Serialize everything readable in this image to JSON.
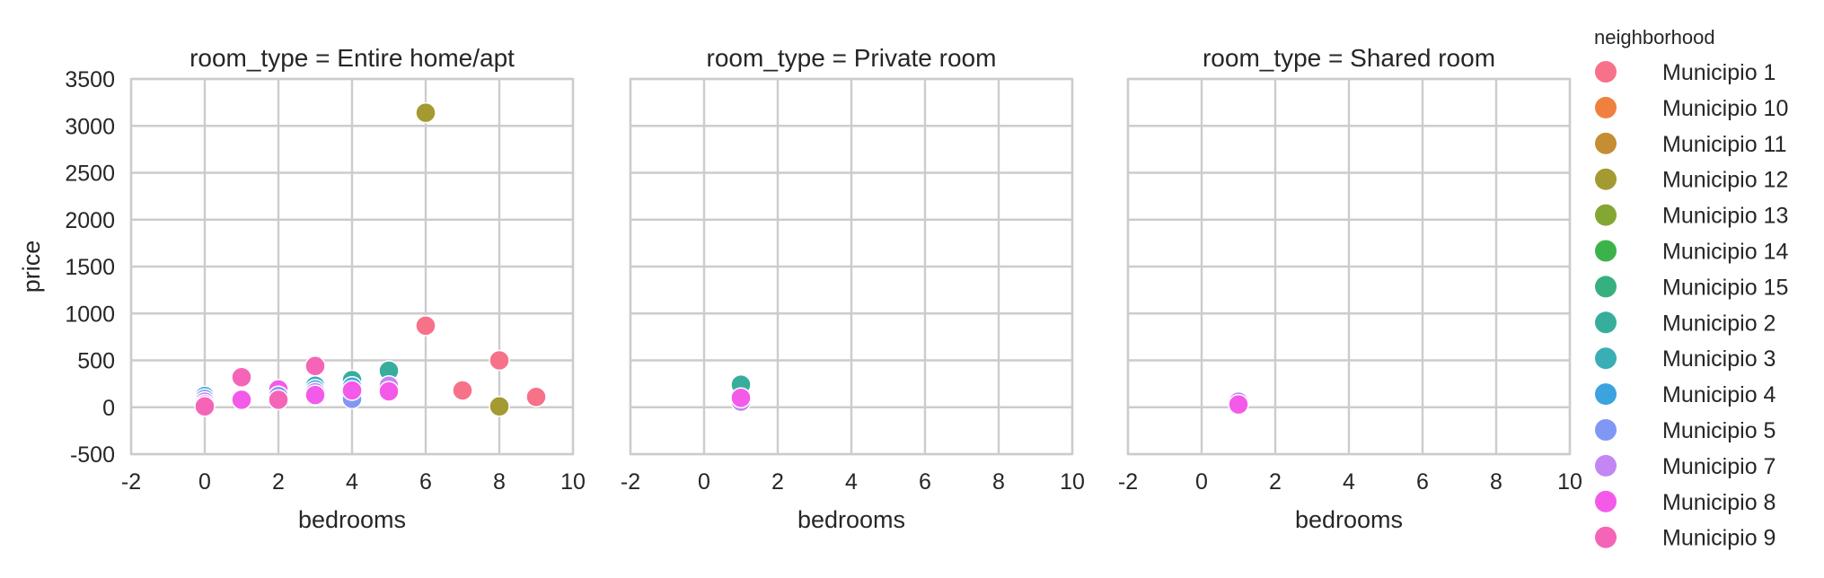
{
  "chart_data": {
    "type": "scatter",
    "x_label": "bedrooms",
    "y_label": "price",
    "xlim": [
      -2,
      10
    ],
    "ylim": [
      -500,
      3500
    ],
    "x_ticks": [
      -2,
      0,
      2,
      4,
      6,
      8,
      10
    ],
    "y_ticks": [
      -500,
      0,
      500,
      1000,
      1500,
      2000,
      2500,
      3000,
      3500
    ],
    "grid": true,
    "legend": {
      "title": "neighborhood",
      "placement": "right",
      "entries": [
        {
          "name": "Municipio 1",
          "color": "#f77189"
        },
        {
          "name": "Municipio 10",
          "color": "#f0803f"
        },
        {
          "name": "Municipio 11",
          "color": "#c58e33"
        },
        {
          "name": "Municipio 12",
          "color": "#a39a32"
        },
        {
          "name": "Municipio 13",
          "color": "#84a633"
        },
        {
          "name": "Municipio 14",
          "color": "#3bb34a"
        },
        {
          "name": "Municipio 15",
          "color": "#36b07e"
        },
        {
          "name": "Municipio 2",
          "color": "#37ae9c"
        },
        {
          "name": "Municipio 3",
          "color": "#39aeb5"
        },
        {
          "name": "Municipio 4",
          "color": "#3ba3de"
        },
        {
          "name": "Municipio 5",
          "color": "#8197f4"
        },
        {
          "name": "Municipio 7",
          "color": "#c386f3"
        },
        {
          "name": "Municipio 8",
          "color": "#f45ae9"
        },
        {
          "name": "Municipio 9",
          "color": "#f565b7"
        }
      ]
    },
    "facets": [
      {
        "title": "room_type = Entire home/apt",
        "points": [
          {
            "x": 0,
            "y": 120,
            "series": "Municipio 4"
          },
          {
            "x": 0,
            "y": 90,
            "series": "Municipio 5"
          },
          {
            "x": 0,
            "y": 60,
            "series": "Municipio 7"
          },
          {
            "x": 0,
            "y": 30,
            "series": "Municipio 8"
          },
          {
            "x": 0,
            "y": 10,
            "series": "Municipio 9"
          },
          {
            "x": 1,
            "y": 320,
            "series": "Municipio 9"
          },
          {
            "x": 1,
            "y": 90,
            "series": "Municipio 7"
          },
          {
            "x": 1,
            "y": 80,
            "series": "Municipio 8"
          },
          {
            "x": 2,
            "y": 190,
            "series": "Municipio 8"
          },
          {
            "x": 2,
            "y": 120,
            "series": "Municipio 5"
          },
          {
            "x": 2,
            "y": 80,
            "series": "Municipio 9"
          },
          {
            "x": 3,
            "y": 440,
            "series": "Municipio 9"
          },
          {
            "x": 3,
            "y": 230,
            "series": "Municipio 3"
          },
          {
            "x": 3,
            "y": 190,
            "series": "Municipio 4"
          },
          {
            "x": 3,
            "y": 160,
            "series": "Municipio 7"
          },
          {
            "x": 3,
            "y": 120,
            "series": "Municipio 5"
          },
          {
            "x": 3,
            "y": 130,
            "series": "Municipio 8"
          },
          {
            "x": 4,
            "y": 290,
            "series": "Municipio 2"
          },
          {
            "x": 4,
            "y": 220,
            "series": "Municipio 4"
          },
          {
            "x": 4,
            "y": 90,
            "series": "Municipio 5"
          },
          {
            "x": 4,
            "y": 180,
            "series": "Municipio 8"
          },
          {
            "x": 5,
            "y": 390,
            "series": "Municipio 2"
          },
          {
            "x": 5,
            "y": 230,
            "series": "Municipio 7"
          },
          {
            "x": 5,
            "y": 170,
            "series": "Municipio 8"
          },
          {
            "x": 6,
            "y": 3140,
            "series": "Municipio 12"
          },
          {
            "x": 6,
            "y": 870,
            "series": "Municipio 1"
          },
          {
            "x": 7,
            "y": 180,
            "series": "Municipio 1"
          },
          {
            "x": 8,
            "y": 500,
            "series": "Municipio 1"
          },
          {
            "x": 8,
            "y": 10,
            "series": "Municipio 12"
          },
          {
            "x": 9,
            "y": 110,
            "series": "Municipio 1"
          }
        ]
      },
      {
        "title": "room_type = Private room",
        "points": [
          {
            "x": 1,
            "y": 240,
            "series": "Municipio 2"
          },
          {
            "x": 1,
            "y": 60,
            "series": "Municipio 7"
          },
          {
            "x": 1,
            "y": 100,
            "series": "Municipio 8"
          }
        ]
      },
      {
        "title": "room_type = Shared room",
        "points": [
          {
            "x": 1,
            "y": 60,
            "series": "Municipio 7"
          },
          {
            "x": 1,
            "y": 30,
            "series": "Municipio 8"
          }
        ]
      }
    ]
  }
}
